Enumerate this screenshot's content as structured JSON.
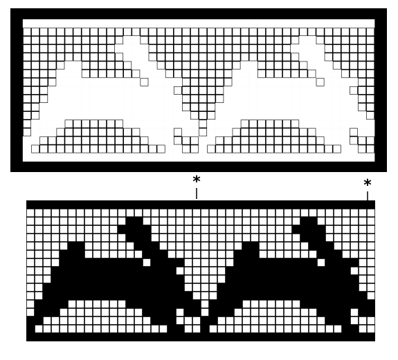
{
  "markers": [
    "*",
    "*"
  ]
}
